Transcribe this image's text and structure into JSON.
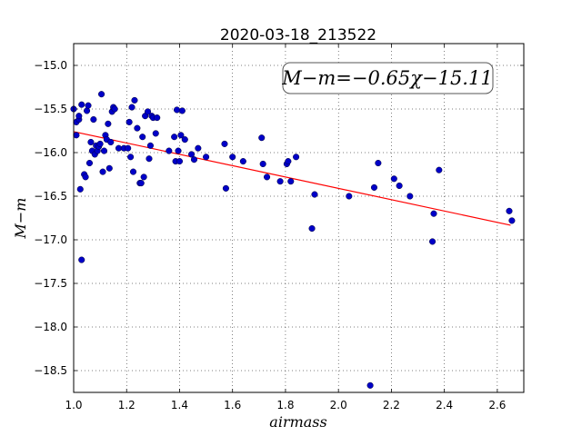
{
  "chart_data": {
    "type": "scatter",
    "title": "2020-03-18_213522",
    "xlabel": "airmass",
    "ylabel": "M−m",
    "xlim": [
      1.0,
      2.7
    ],
    "ylim": [
      -18.75,
      -14.75
    ],
    "y_inverted": true,
    "grid": true,
    "x_ticks": [
      1.0,
      1.2,
      1.4,
      1.6,
      1.8,
      2.0,
      2.2,
      2.4,
      2.6
    ],
    "x_tick_labels": [
      "1.0",
      "1.2",
      "1.4",
      "1.6",
      "1.8",
      "2.0",
      "2.2",
      "2.4",
      "2.6"
    ],
    "y_ticks": [
      -15.0,
      -15.5,
      -16.0,
      -16.5,
      -17.0,
      -17.5,
      -18.0,
      -18.5
    ],
    "y_tick_labels": [
      "−15.0",
      "−15.5",
      "−16.0",
      "−16.5",
      "−17.0",
      "−17.5",
      "−18.0",
      "−18.5"
    ],
    "annotation": "M−m=−0.65χ−15.11",
    "annotation_position": "top-right",
    "point_color": "#0000c8",
    "fit_color": "#ff0000",
    "fit_line": {
      "slope": -0.65,
      "intercept": -15.11,
      "x": [
        1.0,
        2.65
      ]
    },
    "points": {
      "x": [
        1.0,
        1.01,
        1.01,
        1.02,
        1.02,
        1.025,
        1.03,
        1.03,
        1.04,
        1.045,
        1.05,
        1.055,
        1.06,
        1.065,
        1.07,
        1.075,
        1.08,
        1.085,
        1.09,
        1.095,
        1.1,
        1.105,
        1.11,
        1.115,
        1.12,
        1.125,
        1.13,
        1.135,
        1.14,
        1.145,
        1.15,
        1.155,
        1.17,
        1.19,
        1.205,
        1.21,
        1.215,
        1.22,
        1.225,
        1.23,
        1.24,
        1.25,
        1.255,
        1.26,
        1.265,
        1.27,
        1.28,
        1.285,
        1.29,
        1.295,
        1.3,
        1.31,
        1.315,
        1.36,
        1.38,
        1.385,
        1.39,
        1.395,
        1.4,
        1.405,
        1.41,
        1.42,
        1.445,
        1.455,
        1.47,
        1.5,
        1.57,
        1.575,
        1.6,
        1.64,
        1.71,
        1.715,
        1.73,
        1.78,
        1.805,
        1.81,
        1.82,
        1.84,
        1.9,
        1.91,
        2.04,
        2.12,
        2.135,
        2.15,
        2.21,
        2.23,
        2.27,
        2.355,
        2.36,
        2.38,
        2.645,
        2.655
      ],
      "y": [
        -15.5,
        -15.8,
        -15.65,
        -15.62,
        -15.58,
        -16.42,
        -17.23,
        -15.45,
        -16.25,
        -16.28,
        -15.52,
        -15.46,
        -16.12,
        -15.88,
        -15.98,
        -15.62,
        -16.02,
        -15.92,
        -15.98,
        -15.93,
        -15.9,
        -15.33,
        -16.22,
        -15.98,
        -15.8,
        -15.85,
        -15.67,
        -16.18,
        -15.88,
        -15.53,
        -15.48,
        -15.5,
        -15.95,
        -15.95,
        -15.95,
        -15.65,
        -16.05,
        -15.48,
        -16.22,
        -15.4,
        -15.72,
        -16.35,
        -16.35,
        -15.82,
        -16.28,
        -15.58,
        -15.53,
        -16.07,
        -15.92,
        -15.58,
        -15.6,
        -15.78,
        -15.6,
        -15.98,
        -15.82,
        -16.1,
        -15.51,
        -15.98,
        -16.1,
        -15.8,
        -15.52,
        -15.85,
        -16.02,
        -16.08,
        -15.95,
        -16.05,
        -15.9,
        -16.41,
        -16.05,
        -16.1,
        -15.83,
        -16.13,
        -16.28,
        -16.33,
        -16.13,
        -16.1,
        -16.33,
        -16.05,
        -16.87,
        -16.48,
        -16.5,
        -18.67,
        -16.4,
        -16.12,
        -16.3,
        -16.38,
        -16.5,
        -17.02,
        -16.7,
        -16.2,
        -16.67,
        -16.78
      ]
    }
  }
}
